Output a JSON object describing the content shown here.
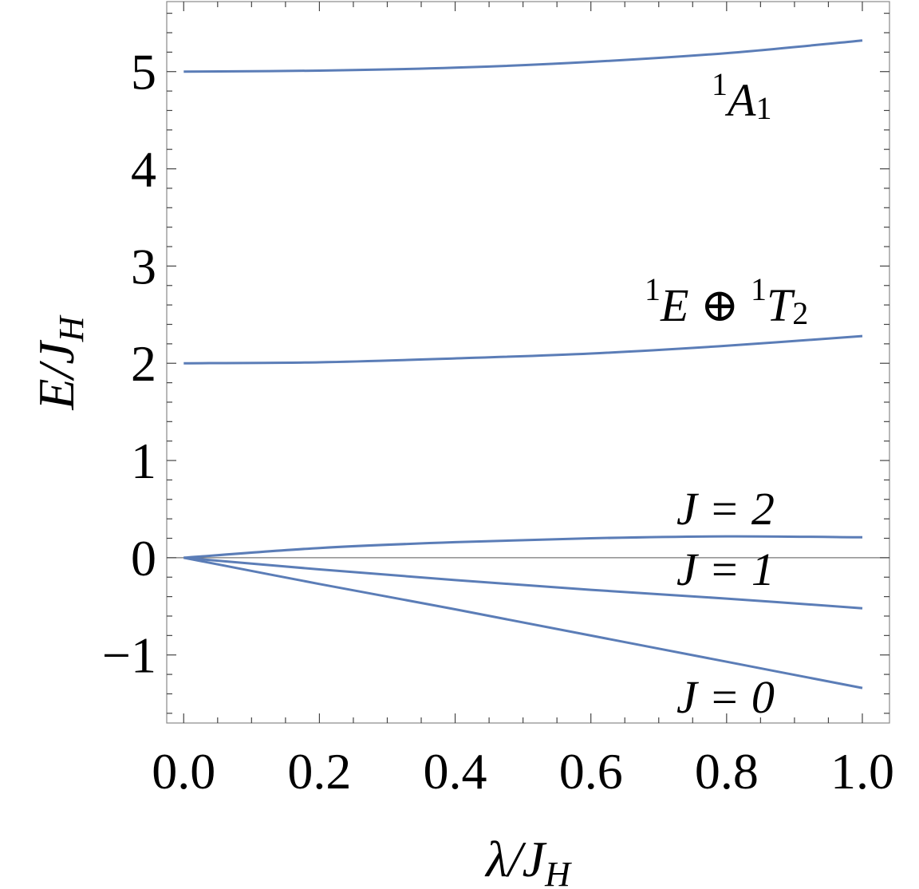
{
  "chart_data": {
    "type": "line",
    "xlabel": "λ/J_H",
    "ylabel": "E/J_H",
    "xlim": [
      -0.025,
      1.04
    ],
    "ylim": [
      -1.7,
      5.72
    ],
    "x_ticks": [
      "0.0",
      "0.2",
      "0.4",
      "0.6",
      "0.8",
      "1.0"
    ],
    "x_tick_values": [
      0,
      0.2,
      0.4,
      0.6,
      0.8,
      1.0
    ],
    "y_ticks": [
      "−1",
      "0",
      "1",
      "2",
      "3",
      "4",
      "5"
    ],
    "y_tick_values": [
      -1,
      0,
      1,
      2,
      3,
      4,
      5
    ],
    "grid": false,
    "line_color": "#5b7db7",
    "zero_line": true,
    "series": [
      {
        "label": {
          "sup": "1",
          "main": "A",
          "sub": "1",
          "suffix": ""
        },
        "x": [
          0,
          0.2,
          0.4,
          0.6,
          0.8,
          1.0
        ],
        "values": [
          5.0,
          5.01,
          5.04,
          5.1,
          5.19,
          5.32
        ]
      },
      {
        "label": {
          "sup": "1",
          "main": "E ⊕ ",
          "sup2": "1",
          "main2": "T",
          "sub": "2"
        },
        "x": [
          0,
          0.2,
          0.4,
          0.6,
          0.8,
          1.0
        ],
        "values": [
          2.0,
          2.01,
          2.05,
          2.1,
          2.18,
          2.28
        ]
      },
      {
        "label": {
          "text": "J = 2"
        },
        "x": [
          0,
          0.2,
          0.4,
          0.6,
          0.8,
          1.0
        ],
        "values": [
          0,
          0.1,
          0.16,
          0.2,
          0.22,
          0.21
        ]
      },
      {
        "label": {
          "text": "J = 1"
        },
        "x": [
          0,
          0.2,
          0.4,
          0.6,
          0.8,
          1.0
        ],
        "values": [
          0,
          -0.12,
          -0.23,
          -0.33,
          -0.42,
          -0.52
        ]
      },
      {
        "label": {
          "text": "J = 0"
        },
        "x": [
          0,
          0.2,
          0.4,
          0.6,
          0.8,
          1.0
        ],
        "values": [
          0,
          -0.27,
          -0.53,
          -0.8,
          -1.07,
          -1.34
        ]
      }
    ]
  }
}
